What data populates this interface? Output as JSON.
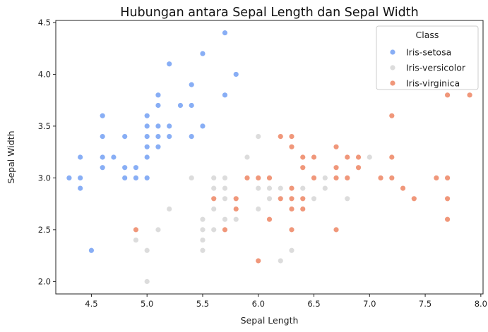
{
  "chart_data": {
    "type": "scatter",
    "title": "Hubungan antara Sepal Length dan Sepal Width",
    "xlabel": "Sepal Length",
    "ylabel": "Sepal Width",
    "xlim": [
      4.18,
      8.02
    ],
    "ylim": [
      1.88,
      4.52
    ],
    "xticks": [
      "4.5",
      "5.0",
      "5.5",
      "6.0",
      "6.5",
      "7.0",
      "7.5",
      "8.0"
    ],
    "yticks": [
      "2.0",
      "2.5",
      "3.0",
      "3.5",
      "4.0",
      "4.5"
    ],
    "grid": false,
    "legend": {
      "title": "Class",
      "position": "top-right"
    },
    "series": [
      {
        "name": "Iris-setosa",
        "color": "#88aef5",
        "points": [
          [
            5.1,
            3.5
          ],
          [
            4.9,
            3.0
          ],
          [
            4.7,
            3.2
          ],
          [
            4.6,
            3.1
          ],
          [
            5.0,
            3.6
          ],
          [
            5.4,
            3.9
          ],
          [
            4.6,
            3.4
          ],
          [
            5.0,
            3.4
          ],
          [
            4.4,
            2.9
          ],
          [
            4.9,
            3.1
          ],
          [
            5.4,
            3.7
          ],
          [
            4.8,
            3.4
          ],
          [
            4.8,
            3.0
          ],
          [
            4.3,
            3.0
          ],
          [
            5.8,
            4.0
          ],
          [
            5.7,
            4.4
          ],
          [
            5.4,
            3.9
          ],
          [
            5.1,
            3.5
          ],
          [
            5.7,
            3.8
          ],
          [
            5.1,
            3.8
          ],
          [
            5.4,
            3.4
          ],
          [
            5.1,
            3.7
          ],
          [
            4.6,
            3.6
          ],
          [
            5.1,
            3.3
          ],
          [
            4.8,
            3.4
          ],
          [
            5.0,
            3.0
          ],
          [
            5.0,
            3.4
          ],
          [
            5.2,
            3.5
          ],
          [
            5.2,
            3.4
          ],
          [
            4.7,
            3.2
          ],
          [
            4.8,
            3.1
          ],
          [
            5.4,
            3.4
          ],
          [
            5.2,
            4.1
          ],
          [
            5.5,
            4.2
          ],
          [
            4.9,
            3.1
          ],
          [
            5.0,
            3.2
          ],
          [
            5.5,
            3.5
          ],
          [
            4.9,
            3.1
          ],
          [
            4.4,
            3.0
          ],
          [
            5.1,
            3.4
          ],
          [
            5.0,
            3.5
          ],
          [
            4.5,
            2.3
          ],
          [
            4.4,
            3.2
          ],
          [
            5.0,
            3.5
          ],
          [
            5.1,
            3.8
          ],
          [
            4.8,
            3.0
          ],
          [
            5.1,
            3.8
          ],
          [
            4.6,
            3.2
          ],
          [
            5.3,
            3.7
          ],
          [
            5.0,
            3.3
          ]
        ]
      },
      {
        "name": "Iris-versicolor",
        "color": "#dcdcdc",
        "points": [
          [
            7.0,
            3.2
          ],
          [
            6.4,
            3.2
          ],
          [
            6.9,
            3.1
          ],
          [
            5.5,
            2.3
          ],
          [
            6.5,
            2.8
          ],
          [
            5.7,
            2.8
          ],
          [
            6.3,
            3.3
          ],
          [
            4.9,
            2.4
          ],
          [
            6.6,
            2.9
          ],
          [
            5.2,
            2.7
          ],
          [
            5.0,
            2.0
          ],
          [
            5.9,
            3.0
          ],
          [
            6.0,
            2.2
          ],
          [
            6.1,
            2.9
          ],
          [
            5.6,
            2.9
          ],
          [
            6.7,
            3.1
          ],
          [
            5.6,
            3.0
          ],
          [
            5.8,
            2.7
          ],
          [
            6.2,
            2.2
          ],
          [
            5.6,
            2.5
          ],
          [
            5.9,
            3.2
          ],
          [
            6.1,
            2.8
          ],
          [
            6.3,
            2.5
          ],
          [
            6.1,
            2.8
          ],
          [
            6.4,
            2.9
          ],
          [
            6.6,
            3.0
          ],
          [
            6.8,
            2.8
          ],
          [
            6.7,
            3.0
          ],
          [
            6.0,
            2.9
          ],
          [
            5.7,
            2.6
          ],
          [
            5.5,
            2.4
          ],
          [
            5.5,
            2.4
          ],
          [
            5.8,
            2.7
          ],
          [
            6.0,
            2.7
          ],
          [
            5.4,
            3.0
          ],
          [
            6.0,
            3.4
          ],
          [
            6.7,
            3.1
          ],
          [
            6.3,
            2.3
          ],
          [
            5.6,
            3.0
          ],
          [
            5.5,
            2.5
          ],
          [
            5.5,
            2.6
          ],
          [
            6.1,
            3.0
          ],
          [
            5.8,
            2.6
          ],
          [
            5.0,
            2.3
          ],
          [
            5.6,
            2.7
          ],
          [
            5.7,
            3.0
          ],
          [
            5.7,
            2.9
          ],
          [
            6.2,
            2.9
          ],
          [
            5.1,
            2.5
          ],
          [
            5.7,
            2.8
          ]
        ]
      },
      {
        "name": "Iris-virginica",
        "color": "#f0977a",
        "points": [
          [
            6.3,
            3.3
          ],
          [
            5.8,
            2.7
          ],
          [
            7.1,
            3.0
          ],
          [
            6.3,
            2.9
          ],
          [
            6.5,
            3.0
          ],
          [
            7.6,
            3.0
          ],
          [
            4.9,
            2.5
          ],
          [
            7.3,
            2.9
          ],
          [
            6.7,
            2.5
          ],
          [
            7.2,
            3.6
          ],
          [
            6.5,
            3.2
          ],
          [
            6.4,
            2.7
          ],
          [
            6.8,
            3.0
          ],
          [
            5.7,
            2.5
          ],
          [
            5.8,
            2.8
          ],
          [
            6.4,
            3.2
          ],
          [
            6.5,
            3.0
          ],
          [
            7.7,
            3.8
          ],
          [
            7.7,
            2.6
          ],
          [
            6.0,
            2.2
          ],
          [
            6.9,
            3.2
          ],
          [
            5.6,
            2.8
          ],
          [
            7.7,
            2.8
          ],
          [
            6.3,
            2.7
          ],
          [
            6.7,
            3.3
          ],
          [
            7.2,
            3.2
          ],
          [
            6.2,
            2.8
          ],
          [
            6.1,
            3.0
          ],
          [
            6.4,
            2.8
          ],
          [
            7.2,
            3.0
          ],
          [
            7.4,
            2.8
          ],
          [
            7.9,
            3.8
          ],
          [
            6.4,
            2.8
          ],
          [
            6.3,
            2.8
          ],
          [
            6.1,
            2.6
          ],
          [
            7.7,
            3.0
          ],
          [
            6.3,
            3.4
          ],
          [
            6.4,
            3.1
          ],
          [
            6.0,
            3.0
          ],
          [
            6.9,
            3.1
          ],
          [
            6.7,
            3.1
          ],
          [
            6.9,
            3.1
          ],
          [
            5.8,
            2.7
          ],
          [
            6.8,
            3.2
          ],
          [
            6.7,
            3.3
          ],
          [
            6.7,
            3.0
          ],
          [
            6.3,
            2.5
          ],
          [
            6.5,
            3.0
          ],
          [
            6.2,
            3.4
          ],
          [
            5.9,
            3.0
          ]
        ]
      }
    ]
  }
}
